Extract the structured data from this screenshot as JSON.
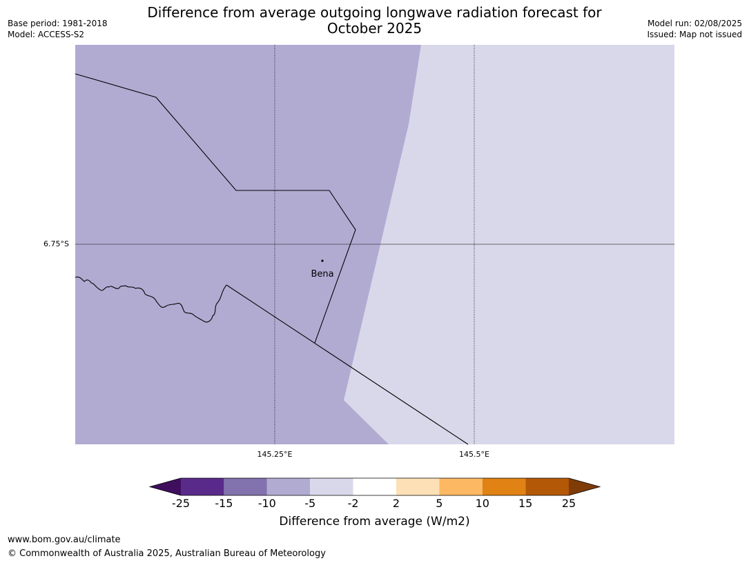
{
  "header": {
    "title_line1": "Difference from average outgoing longwave radiation forecast for",
    "title_line2": "October 2025",
    "base_period": "Base period: 1981-2018",
    "model": "Model: ACCESS-S2",
    "model_run": "Model run: 02/08/2025",
    "issued": "Issued: Map not issued"
  },
  "map": {
    "y_labels": [
      "6.75°S"
    ],
    "x_labels": [
      "145.25°E",
      "145.5°E"
    ],
    "places": [
      {
        "name": "Bena"
      }
    ],
    "colors": {
      "region_minus_10_to_minus_5": "#b1abd2",
      "region_minus_5_to_minus_2": "#d8d8ea",
      "gridline": "#444444",
      "boundary": "#000000"
    }
  },
  "colorbar": {
    "ticks": [
      "-25",
      "-15",
      "-10",
      "-5",
      "-2",
      "2",
      "5",
      "10",
      "15",
      "25"
    ],
    "colors": [
      "#3f0f5e",
      "#5a2a8b",
      "#8272ad",
      "#b1abd2",
      "#d8d8ea",
      "#ffffff",
      "#fee0b6",
      "#fdb863",
      "#e08214",
      "#b35806",
      "#7f3b08"
    ],
    "label": "Difference from average (W/m2)"
  },
  "footer": {
    "url": "www.bom.gov.au/climate",
    "copyright": "© Commonwealth of Australia 2025, Australian Bureau of Meteorology"
  }
}
